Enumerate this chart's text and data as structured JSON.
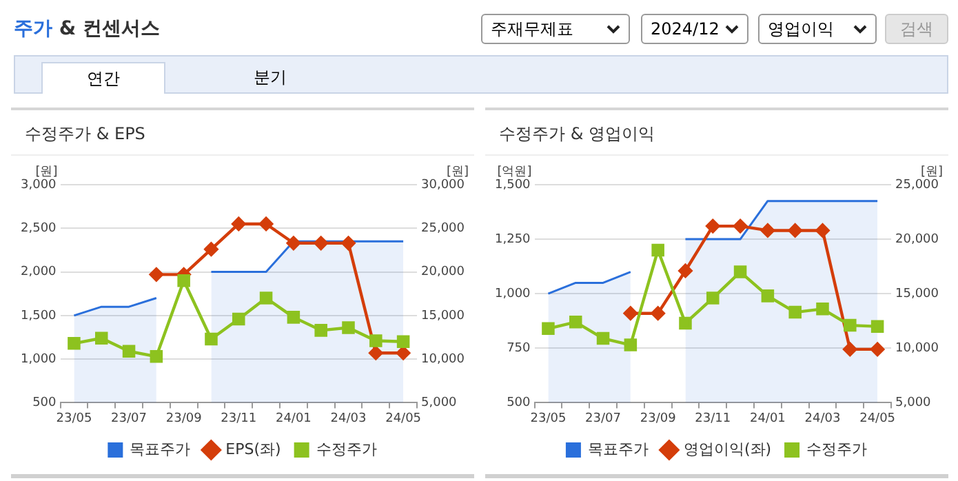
{
  "chart_data": [
    {
      "type": "other",
      "title": "주가 & 컨센서스",
      "annotations": [
        "주재무제표",
        "2024/12",
        "영업이익",
        "검색",
        "연간",
        "분기"
      ]
    },
    {
      "type": "line",
      "title": "수정주가 & EPS",
      "ylabel": "[원]",
      "y2label": "[원]",
      "categories": [
        "23/05",
        null,
        "23/07",
        null,
        "23/09",
        null,
        "23/11",
        null,
        "24/01",
        null,
        "24/03",
        null,
        "24/05"
      ],
      "ylim": [
        500,
        3000
      ],
      "yticks": [
        {
          "value": 500,
          "label": "500"
        },
        {
          "value": 1000,
          "label": "1,000"
        },
        {
          "value": 1500,
          "label": "1,500"
        },
        {
          "value": 2000,
          "label": "2,000"
        },
        {
          "value": 2500,
          "label": "2,500"
        },
        {
          "value": 3000,
          "label": "3,000"
        }
      ],
      "y2lim": [
        5000,
        30000
      ],
      "y2ticks": [
        {
          "value": 5000,
          "label": "5,000"
        },
        {
          "value": 10000,
          "label": "10,000"
        },
        {
          "value": 15000,
          "label": "15,000"
        },
        {
          "value": 20000,
          "label": "20,000"
        },
        {
          "value": 25000,
          "label": "25,000"
        },
        {
          "value": 30000,
          "label": "30,000"
        }
      ],
      "grid": "y",
      "legend": "bottom",
      "series": [
        {
          "name": "목표주가",
          "type": "area",
          "axis": "y2",
          "color": "#2a6fdb",
          "marker": "none",
          "values": [
            15000,
            16000,
            16000,
            17000,
            null,
            20000,
            20000,
            20000,
            23500,
            23500,
            23500,
            23500,
            23500
          ]
        },
        {
          "name": "EPS(좌)",
          "type": "line",
          "color": "#d43d0a",
          "marker": "diamond",
          "values": [
            null,
            null,
            null,
            1970,
            1970,
            2260,
            2550,
            2550,
            2330,
            2330,
            2330,
            1070,
            1070
          ]
        },
        {
          "name": "수정주가",
          "type": "line",
          "axis": "y2",
          "color": "#8dc21f",
          "marker": "square",
          "values": [
            11800,
            12400,
            10900,
            10300,
            19000,
            12300,
            14600,
            17000,
            14800,
            13300,
            13600,
            12100,
            12000
          ]
        }
      ]
    },
    {
      "type": "line",
      "title": "수정주가 & 영업이익",
      "ylabel": "[억원]",
      "y2label": "[원]",
      "categories": [
        "23/05",
        null,
        "23/07",
        null,
        "23/09",
        null,
        "23/11",
        null,
        "24/01",
        null,
        "24/03",
        null,
        "24/05"
      ],
      "ylim": [
        500,
        1500
      ],
      "yticks": [
        {
          "value": 500,
          "label": "500"
        },
        {
          "value": 750,
          "label": "750"
        },
        {
          "value": 1000,
          "label": "1,000"
        },
        {
          "value": 1250,
          "label": "1,250"
        },
        {
          "value": 1500,
          "label": "1,500"
        }
      ],
      "y2lim": [
        5000,
        25000
      ],
      "y2ticks": [
        {
          "value": 5000,
          "label": "5,000"
        },
        {
          "value": 10000,
          "label": "10,000"
        },
        {
          "value": 15000,
          "label": "15,000"
        },
        {
          "value": 20000,
          "label": "20,000"
        },
        {
          "value": 25000,
          "label": "25,000"
        }
      ],
      "grid": "y",
      "legend": "bottom",
      "series": [
        {
          "name": "목표주가",
          "type": "area",
          "axis": "y2",
          "color": "#2a6fdb",
          "marker": "none",
          "values": [
            15000,
            16000,
            16000,
            17000,
            null,
            20000,
            20000,
            20000,
            23500,
            23500,
            23500,
            23500,
            23500
          ]
        },
        {
          "name": "영업이익(좌)",
          "type": "line",
          "color": "#d43d0a",
          "marker": "diamond",
          "values": [
            null,
            null,
            null,
            910,
            910,
            1105,
            1310,
            1310,
            1290,
            1290,
            1290,
            745,
            745
          ]
        },
        {
          "name": "수정주가",
          "type": "line",
          "axis": "y2",
          "color": "#8dc21f",
          "marker": "square",
          "values": [
            11800,
            12400,
            10900,
            10300,
            19000,
            12300,
            14600,
            17000,
            14800,
            13300,
            13600,
            12100,
            12000
          ]
        }
      ]
    }
  ]
}
